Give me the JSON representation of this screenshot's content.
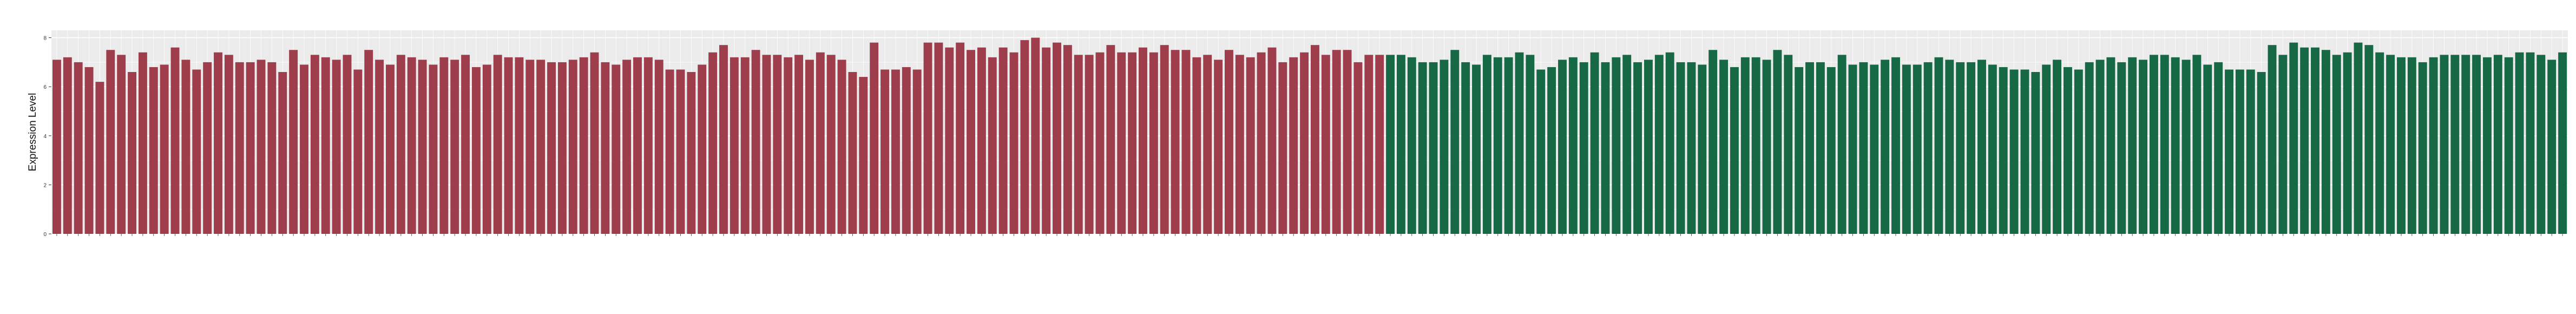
{
  "chart_data": {
    "type": "bar",
    "title": "",
    "xlabel": "",
    "ylabel": "Expression Level",
    "ylim": [
      0,
      8.3
    ],
    "yticks": [
      0,
      2,
      4,
      6,
      8
    ],
    "grid": true,
    "background": "#ebebeb",
    "x_tick_label_rotation_deg": -45,
    "x_tick_labels_legible": false,
    "series": [
      {
        "color": "#9e3d4c",
        "values": [
          7.1,
          7.2,
          7.0,
          6.8,
          6.2,
          7.5,
          7.3,
          6.6,
          7.4,
          6.8,
          6.9,
          7.6,
          7.1,
          6.7,
          7.0,
          7.4,
          7.3,
          7.0,
          7.0,
          7.1,
          7.0,
          6.6,
          7.5,
          6.9,
          7.3,
          7.2,
          7.1,
          7.3,
          6.7,
          7.5,
          7.1,
          6.9,
          7.3,
          7.2,
          7.1,
          6.9,
          7.2,
          7.1,
          7.3,
          6.8,
          6.9,
          7.3,
          7.2,
          7.2,
          7.1,
          7.1,
          7.0,
          7.0,
          7.1,
          7.2,
          7.4,
          7.0,
          6.9,
          7.1,
          7.2,
          7.2,
          7.1,
          6.7,
          6.7,
          6.6,
          6.9,
          7.4,
          7.7,
          7.2,
          7.2,
          7.5,
          7.3,
          7.3,
          7.2,
          7.3,
          7.1,
          7.4,
          7.3,
          7.1,
          6.6,
          6.4,
          7.8,
          6.7,
          6.7,
          6.8,
          6.7,
          7.8,
          7.8,
          7.6,
          7.8,
          7.5,
          7.6,
          7.2,
          7.6,
          7.4,
          7.9,
          8.0,
          7.6,
          7.8,
          7.7,
          7.3,
          7.3,
          7.4,
          7.7,
          7.4,
          7.4,
          7.6,
          7.4,
          7.7,
          7.5,
          7.5,
          7.2,
          7.3,
          7.1,
          7.5,
          7.3,
          7.2,
          7.4,
          7.6,
          7.0,
          7.2,
          7.4,
          7.7,
          7.3,
          7.5,
          7.5,
          7.0,
          7.3,
          7.3
        ]
      },
      {
        "color": "#176945",
        "values": [
          7.3,
          7.3,
          7.2,
          7.0,
          7.0,
          7.1,
          7.5,
          7.0,
          6.9,
          7.3,
          7.2,
          7.2,
          7.4,
          7.3,
          6.7,
          6.8,
          7.1,
          7.2,
          7.0,
          7.4,
          7.0,
          7.2,
          7.3,
          7.0,
          7.1,
          7.3,
          7.4,
          7.0,
          7.0,
          6.9,
          7.5,
          7.1,
          6.8,
          7.2,
          7.2,
          7.1,
          7.5,
          7.3,
          6.8,
          7.0,
          7.0,
          6.8,
          7.3,
          6.9,
          7.0,
          6.9,
          7.1,
          7.2,
          6.9,
          6.9,
          7.0,
          7.2,
          7.1,
          7.0,
          7.0,
          7.1,
          6.9,
          6.8,
          6.7,
          6.7,
          6.6,
          6.9,
          7.1,
          6.8,
          6.7,
          7.0,
          7.1,
          7.2,
          7.0,
          7.2,
          7.1,
          7.3,
          7.3,
          7.2,
          7.1,
          7.3,
          6.9,
          7.0,
          6.7,
          6.7,
          6.7,
          6.6,
          7.7,
          7.3,
          7.8,
          7.6,
          7.6,
          7.5,
          7.3,
          7.4,
          7.8,
          7.7,
          7.4,
          7.3,
          7.2,
          7.2,
          7.0,
          7.2,
          7.3,
          7.3,
          7.3,
          7.3,
          7.2,
          7.3,
          7.2,
          7.4,
          7.4,
          7.3,
          7.1,
          7.4
        ]
      }
    ]
  }
}
